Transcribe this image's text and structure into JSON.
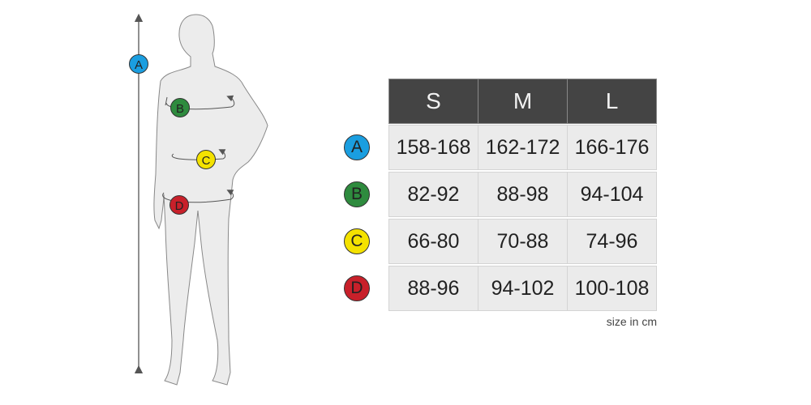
{
  "sizes": [
    "S",
    "M",
    "L"
  ],
  "rows": [
    {
      "key": "A",
      "color": "#1a9ee0",
      "values": [
        "158-168",
        "162-172",
        "166-176"
      ]
    },
    {
      "key": "B",
      "color": "#2e8b3e",
      "values": [
        "82-92",
        "88-98",
        "94-104"
      ]
    },
    {
      "key": "C",
      "color": "#f4e200",
      "values": [
        "66-80",
        "70-88",
        "74-96"
      ]
    },
    {
      "key": "D",
      "color": "#c8202a",
      "values": [
        "88-96",
        "94-102",
        "100-108"
      ]
    }
  ],
  "note": "size in cm",
  "figure": {
    "markers": [
      "A",
      "B",
      "C",
      "D"
    ]
  }
}
